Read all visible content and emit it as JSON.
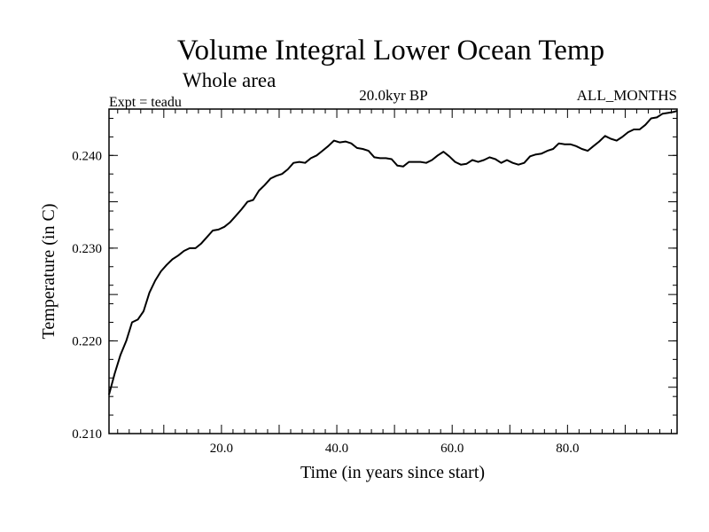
{
  "chart_data": {
    "type": "line",
    "title": "Volume Integral Lower Ocean Temp",
    "subtitle": "Whole area",
    "left_label": "Expt = teadu",
    "center_label": "20.0kyr BP",
    "right_label": "ALL_MONTHS",
    "xlabel": "Time (in years since start)",
    "ylabel": "Temperature (in C)",
    "xlim": [
      0.5,
      99
    ],
    "ylim": [
      0.21,
      0.245
    ],
    "x_ticks": [
      20,
      40,
      60,
      80
    ],
    "x_tick_labels": [
      "20.0",
      "40.0",
      "60.0",
      "80.0"
    ],
    "y_ticks": [
      0.21,
      0.22,
      0.23,
      0.24
    ],
    "y_tick_labels": [
      "0.210",
      "0.220",
      "0.230",
      "0.240"
    ],
    "grid": false,
    "series": [
      {
        "name": "Volume Integral Lower Ocean Temp",
        "x": [
          0.5,
          1.5,
          2.5,
          3.5,
          4.5,
          5.5,
          6.5,
          7.5,
          8.5,
          9.5,
          10.5,
          11.5,
          12.5,
          13.5,
          14.5,
          15.5,
          16.5,
          17.5,
          18.5,
          19.5,
          20.5,
          21.5,
          22.5,
          23.5,
          24.5,
          25.5,
          26.5,
          27.5,
          28.5,
          29.5,
          30.5,
          31.5,
          32.5,
          33.5,
          34.5,
          35.5,
          36.5,
          37.5,
          38.5,
          39.5,
          40.5,
          41.5,
          42.5,
          43.5,
          44.5,
          45.5,
          46.5,
          47.5,
          48.5,
          49.5,
          50.5,
          51.5,
          52.5,
          53.5,
          54.5,
          55.5,
          56.5,
          57.5,
          58.5,
          59.5,
          60.5,
          61.5,
          62.5,
          63.5,
          64.5,
          65.5,
          66.5,
          67.5,
          68.5,
          69.5,
          70.5,
          71.5,
          72.5,
          73.5,
          74.5,
          75.5,
          76.5,
          77.5,
          78.5,
          79.5,
          80.5,
          81.5,
          82.5,
          83.5,
          84.5,
          85.5,
          86.5,
          87.5,
          88.5,
          89.5,
          90.5,
          91.5,
          92.5,
          93.5,
          94.5,
          95.5,
          96.5,
          97.5,
          98.5,
          99.0
        ],
        "values": [
          0.2142,
          0.2165,
          0.2185,
          0.22,
          0.222,
          0.2223,
          0.2232,
          0.2252,
          0.2265,
          0.2275,
          0.2282,
          0.2288,
          0.2292,
          0.2297,
          0.23,
          0.23,
          0.2305,
          0.2312,
          0.2319,
          0.232,
          0.2323,
          0.2328,
          0.2335,
          0.2342,
          0.235,
          0.2352,
          0.2362,
          0.2368,
          0.2375,
          0.2378,
          0.238,
          0.2385,
          0.2392,
          0.2393,
          0.2392,
          0.2397,
          0.24,
          0.2405,
          0.241,
          0.2416,
          0.2414,
          0.2415,
          0.2413,
          0.2408,
          0.2407,
          0.2405,
          0.2398,
          0.2397,
          0.2397,
          0.2396,
          0.2389,
          0.2388,
          0.2393,
          0.2393,
          0.2393,
          0.2392,
          0.2395,
          0.24,
          0.2404,
          0.2399,
          0.2393,
          0.239,
          0.2391,
          0.2395,
          0.2393,
          0.2395,
          0.2398,
          0.2396,
          0.2392,
          0.2395,
          0.2392,
          0.239,
          0.2392,
          0.2399,
          0.2401,
          0.2402,
          0.2405,
          0.2407,
          0.2413,
          0.2412,
          0.2412,
          0.241,
          0.2407,
          0.2405,
          0.241,
          0.2415,
          0.2421,
          0.2418,
          0.2416,
          0.242,
          0.2425,
          0.2428,
          0.2428,
          0.2433,
          0.244,
          0.2441,
          0.2445,
          0.2446,
          0.2447,
          0.2448
        ]
      }
    ]
  }
}
